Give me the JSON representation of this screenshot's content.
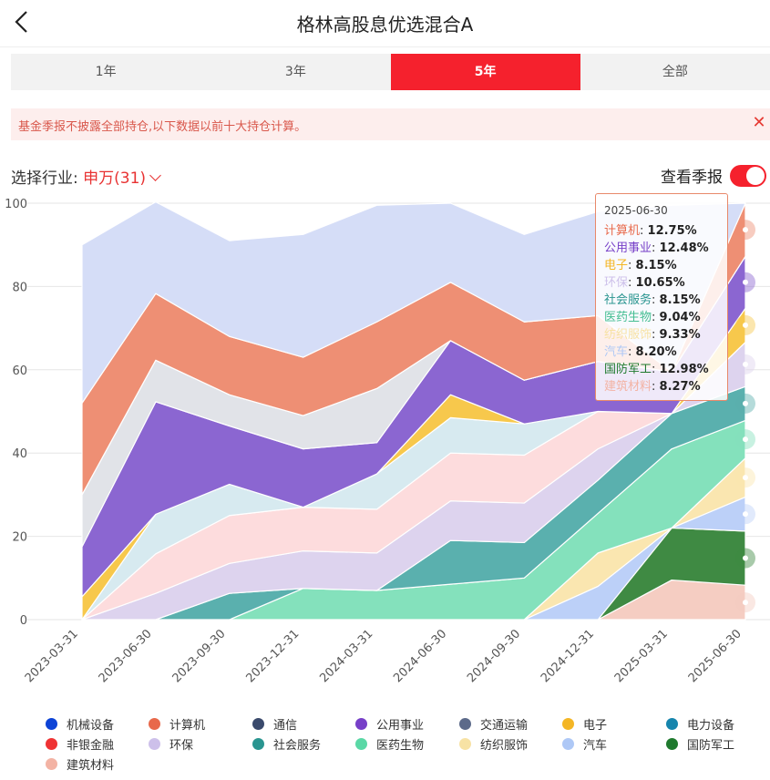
{
  "header": {
    "title": "格林高股息优选混合A"
  },
  "tabs": [
    "1年",
    "3年",
    "5年",
    "全部"
  ],
  "active_tab": "5年",
  "notice": {
    "text": "基金季报不披露全部持仓,以下数据以前十大持仓计算。"
  },
  "industry": {
    "label": "选择行业:",
    "value": "申万(31)"
  },
  "season_toggle": {
    "label": "查看季报",
    "on": true
  },
  "tooltip": {
    "date": "2025-06-30",
    "rows": [
      {
        "name": "计算机",
        "value": "12.75%",
        "color": "#e8694b"
      },
      {
        "name": "公用事业",
        "value": "12.48%",
        "color": "#7740c8"
      },
      {
        "name": "电子",
        "value": "8.15%",
        "color": "#f4b625"
      },
      {
        "name": "环保",
        "value": "10.65%",
        "color": "#cdc0ea"
      },
      {
        "name": "社会服务",
        "value": "8.15%",
        "color": "#2a9590"
      },
      {
        "name": "医药生物",
        "value": "9.04%",
        "color": "#44be92"
      },
      {
        "name": "纺织服饰",
        "value": "9.33%",
        "color": "#f7e2a4"
      },
      {
        "name": "汽车",
        "value": "8.20%",
        "color": "#aec8f6"
      },
      {
        "name": "国防军工",
        "value": "12.98%",
        "color": "#1f7a2e"
      },
      {
        "name": "建筑材料",
        "value": "8.27%",
        "color": "#f3b3a4"
      }
    ]
  },
  "chart_data": {
    "type": "area",
    "stacked": true,
    "x": [
      "2023-03-31",
      "2023-06-30",
      "2023-09-30",
      "2023-12-31",
      "2024-03-31",
      "2024-06-30",
      "2024-09-30",
      "2024-12-31",
      "2025-03-31",
      "2025-06-30"
    ],
    "ylim": [
      0,
      100
    ],
    "yticks": [
      0,
      20,
      40,
      60,
      80,
      100
    ],
    "grid": true,
    "legend_position": "bottom",
    "series": [
      {
        "name": "建筑材料",
        "color": "#f5cdc2",
        "values": [
          0,
          0,
          0,
          0,
          0,
          0,
          0,
          0,
          9.5,
          8.27
        ]
      },
      {
        "name": "国防军工",
        "color": "#3f8a43",
        "values": [
          0,
          0,
          0,
          0,
          0,
          0,
          0,
          0,
          12.5,
          12.98
        ]
      },
      {
        "name": "汽车",
        "color": "#bcd0f8",
        "values": [
          0,
          0,
          0,
          0,
          0,
          0,
          0,
          8,
          0,
          8.2
        ]
      },
      {
        "name": "纺织服饰",
        "color": "#fae6b0",
        "values": [
          0,
          0,
          0,
          0,
          0,
          0,
          0,
          8,
          0,
          9.33
        ]
      },
      {
        "name": "医药生物",
        "color": "#84e1bc",
        "values": [
          0,
          0,
          0,
          7.5,
          7,
          8.5,
          10,
          9.5,
          19,
          9.04
        ]
      },
      {
        "name": "社会服务",
        "color": "#5ab0ae",
        "values": [
          0,
          0,
          6.3,
          0,
          0,
          10.5,
          8.5,
          8,
          8.5,
          8.15
        ]
      },
      {
        "name": "环保",
        "color": "#ddd3ee",
        "values": [
          0,
          6.3,
          7.2,
          9,
          9,
          9.5,
          9.5,
          7.5,
          0,
          10.65
        ]
      },
      {
        "name": "非银金融",
        "color": "#fddcdd",
        "values": [
          0,
          9.5,
          11.5,
          10.5,
          10.5,
          11.5,
          11.5,
          9,
          0,
          0
        ]
      },
      {
        "name": "电力设备",
        "color": "#d7eaf0",
        "values": [
          0,
          9.5,
          7.5,
          0,
          8.5,
          8.5,
          7.5,
          0,
          0,
          0
        ]
      },
      {
        "name": "电子",
        "color": "#f7c84c",
        "values": [
          5.5,
          0,
          0,
          0,
          0,
          5.5,
          0,
          0,
          0,
          8.15
        ]
      },
      {
        "name": "公用事业",
        "color": "#8b66d1",
        "values": [
          12,
          27,
          14,
          14,
          7.5,
          13,
          10.5,
          12,
          10,
          12.48
        ]
      },
      {
        "name": "交通运输",
        "color": "#e1e3e8",
        "values": [
          12.5,
          10,
          7.5,
          8,
          13,
          0,
          0,
          0,
          0,
          0
        ]
      },
      {
        "name": "通信",
        "color": "#dde0e6",
        "values": [
          0,
          0,
          0,
          0,
          0,
          0,
          0,
          0,
          0,
          0
        ]
      },
      {
        "name": "计算机",
        "color": "#ee8f74",
        "values": [
          22,
          16,
          14,
          14,
          16,
          14,
          14,
          11,
          0,
          12.75
        ]
      },
      {
        "name": "机械设备",
        "color": "#d5ddf7",
        "values": [
          38,
          22,
          23,
          29.5,
          28,
          19,
          21,
          25,
          40,
          0
        ]
      }
    ]
  },
  "legend": [
    {
      "name": "机械设备",
      "color": "#0d43d6"
    },
    {
      "name": "计算机",
      "color": "#e8694b"
    },
    {
      "name": "通信",
      "color": "#3a4a6c"
    },
    {
      "name": "公用事业",
      "color": "#7740c8"
    },
    {
      "name": "交通运输",
      "color": "#5c6a8a"
    },
    {
      "name": "电子",
      "color": "#f4b625"
    },
    {
      "name": "电力设备",
      "color": "#1685ad"
    },
    {
      "name": "非银金融",
      "color": "#ef3334"
    },
    {
      "name": "环保",
      "color": "#cdc0ea"
    },
    {
      "name": "社会服务",
      "color": "#2a9590"
    },
    {
      "name": "医药生物",
      "color": "#5ad8a6"
    },
    {
      "name": "纺织服饰",
      "color": "#f7e2a4"
    },
    {
      "name": "汽车",
      "color": "#aec8f6"
    },
    {
      "name": "国防军工",
      "color": "#1f7a2e"
    },
    {
      "name": "建筑材料",
      "color": "#f3b3a4"
    }
  ]
}
